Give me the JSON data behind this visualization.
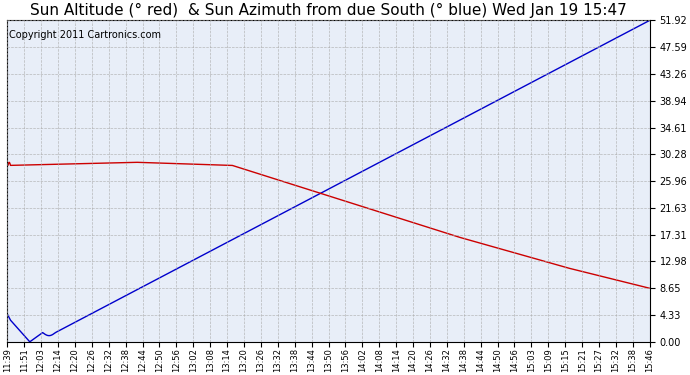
{
  "title": "Sun Altitude (° red)  & Sun Azimuth from due South (° blue) Wed Jan 19 15:47",
  "copyright": "Copyright 2011 Cartronics.com",
  "yticks": [
    0.0,
    4.33,
    8.65,
    12.98,
    17.31,
    21.63,
    25.96,
    30.28,
    34.61,
    38.94,
    43.26,
    47.59,
    51.92
  ],
  "ymin": 0.0,
  "ymax": 51.92,
  "xtick_labels": [
    "11:39",
    "11:51",
    "12:03",
    "12:14",
    "12:20",
    "12:26",
    "12:32",
    "12:38",
    "12:44",
    "12:50",
    "12:56",
    "13:02",
    "13:08",
    "13:14",
    "13:20",
    "13:26",
    "13:32",
    "13:38",
    "13:44",
    "13:50",
    "13:56",
    "14:02",
    "14:08",
    "14:14",
    "14:20",
    "14:26",
    "14:32",
    "14:38",
    "14:44",
    "14:50",
    "14:56",
    "15:03",
    "15:09",
    "15:15",
    "15:21",
    "15:27",
    "15:32",
    "15:38",
    "15:46"
  ],
  "blue_line_color": "#0000cc",
  "red_line_color": "#cc0000",
  "background_color": "#ffffff",
  "plot_bg_color": "#e8eef8",
  "grid_color": "#aaaaaa",
  "title_fontsize": 11,
  "copyright_fontsize": 7
}
